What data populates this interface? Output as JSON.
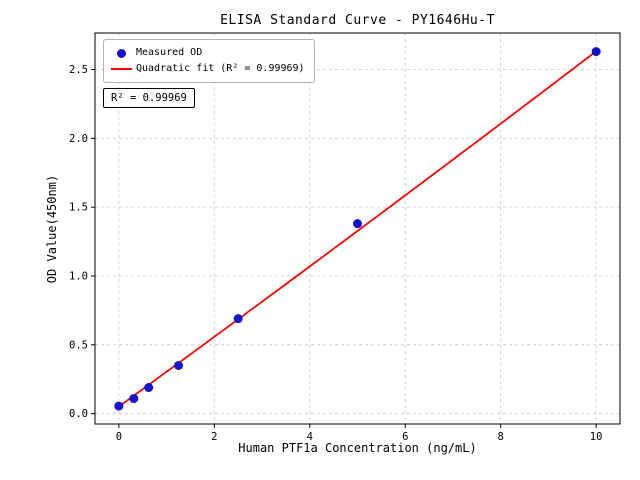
{
  "chart_data": {
    "type": "scatter",
    "title": "ELISA Standard Curve - PY1646Hu-T",
    "xlabel": "Human PTF1a Concentration (ng/mL)",
    "ylabel": "OD Value(450nm)",
    "x": [
      0,
      0.313,
      0.625,
      1.25,
      2.5,
      5,
      10
    ],
    "y": [
      0.055,
      0.11,
      0.19,
      0.35,
      0.69,
      1.38,
      2.63
    ],
    "fit": {
      "type": "quadratic",
      "coefficients": {
        "a": 0.052,
        "b": 0.252,
        "c": 0.0006
      },
      "r_squared": "0.99969",
      "x_start": 0,
      "x_end": 10
    },
    "legend": [
      "Measured OD",
      "Quadratic fit (R² = 0.99969)"
    ],
    "annotation": "R² = 0.99969",
    "xticks": [
      "0",
      "2",
      "4",
      "6",
      "8",
      "10"
    ],
    "yticks": [
      "0.0",
      "0.5",
      "1.0",
      "1.5",
      "2.0",
      "2.5"
    ],
    "xlim": [
      -0.5,
      10.5
    ],
    "ylim": [
      -0.075,
      2.765
    ],
    "grid": true,
    "legend_position": "upper left",
    "colors": {
      "points": "#1414cc",
      "fit_line": "#ff0000",
      "grid": "#c9c9c9",
      "axis": "#000000"
    }
  }
}
